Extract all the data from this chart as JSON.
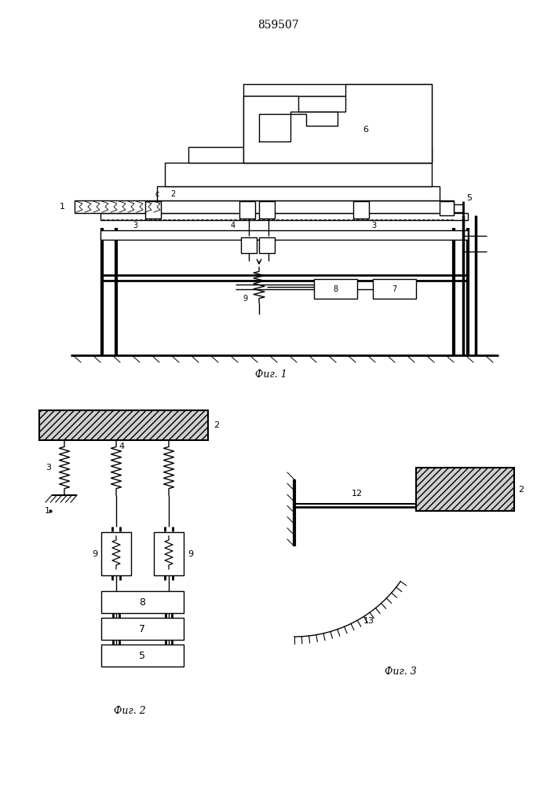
{
  "title": "859507",
  "fig1_caption": "Фиг. 1",
  "fig2_caption": "Фиг. 2",
  "fig3_caption": "Фиг. 3",
  "bg_color": "#ffffff",
  "line_color": "#000000",
  "line_width": 1.0,
  "fig_width": 7.07,
  "fig_height": 10.0
}
